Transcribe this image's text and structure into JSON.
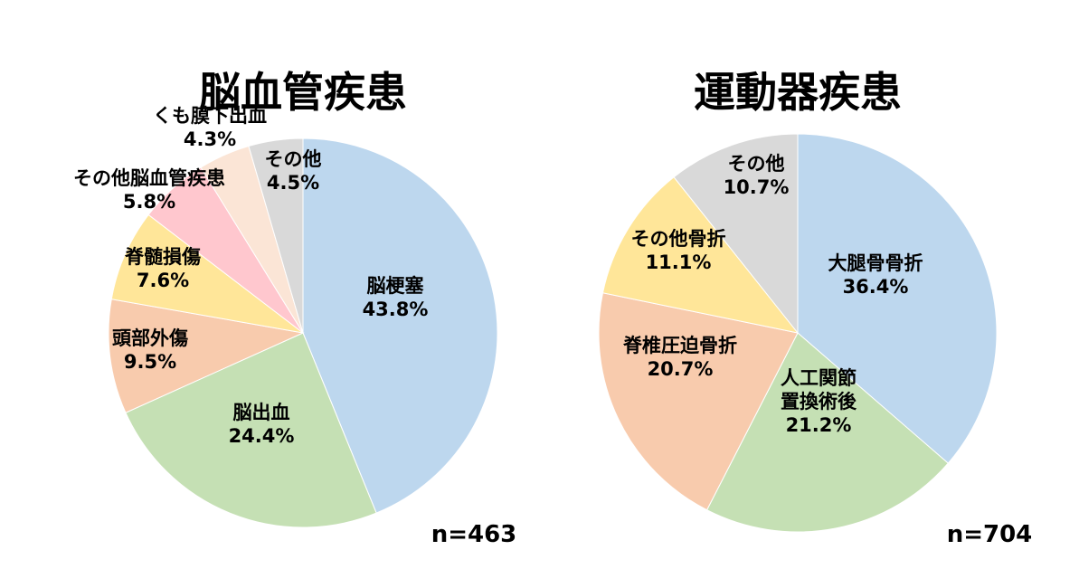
{
  "chart_data": [
    {
      "type": "pie",
      "title": "脳血管疾患",
      "n_label": "n=463",
      "slices": [
        {
          "name": "脳梗塞",
          "value": 43.8,
          "label": "43.8%",
          "color": "#bdd7ee"
        },
        {
          "name": "脳出血",
          "value": 24.4,
          "label": "24.4%",
          "color": "#c5e0b4"
        },
        {
          "name": "頭部外傷",
          "value": 9.5,
          "label": "9.5%",
          "color": "#f8cbad"
        },
        {
          "name": "脊髄損傷",
          "value": 7.6,
          "label": "7.6%",
          "color": "#ffe699"
        },
        {
          "name": "その他脳血管疾患",
          "value": 5.8,
          "label": "5.8%",
          "color": "#ffc7ce"
        },
        {
          "name": "くも膜下出血",
          "value": 4.3,
          "label": "4.3%",
          "color": "#fbe5d6"
        },
        {
          "name": "その他",
          "value": 4.5,
          "label": "4.5%",
          "color": "#d9d9d9"
        }
      ]
    },
    {
      "type": "pie",
      "title": "運動器疾患",
      "n_label": "n=704",
      "slices": [
        {
          "name": "大腿骨骨折",
          "value": 36.4,
          "label": "36.4%",
          "color": "#bdd7ee"
        },
        {
          "name": "人工関節置換術後",
          "value": 21.2,
          "label": "21.2%",
          "color": "#c5e0b4",
          "name_lines": [
            "人工関節",
            "置換術後"
          ]
        },
        {
          "name": "脊椎圧迫骨折",
          "value": 20.7,
          "label": "20.7%",
          "color": "#f8cbad"
        },
        {
          "name": "その他骨折",
          "value": 11.1,
          "label": "11.1%",
          "color": "#ffe699"
        },
        {
          "name": "その他",
          "value": 10.7,
          "label": "10.7%",
          "color": "#d9d9d9"
        }
      ]
    }
  ]
}
